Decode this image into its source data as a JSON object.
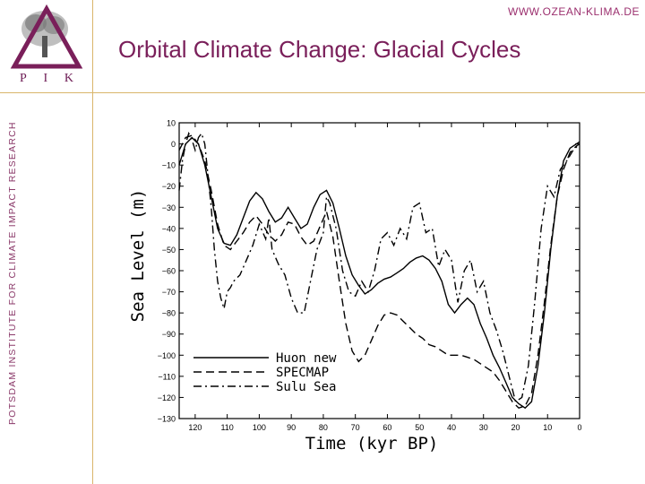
{
  "header": {
    "url": "WWW.OZEAN-KLIMA.DE",
    "title": "Orbital Climate Change: Glacial Cycles"
  },
  "logo": {
    "letters": [
      "P",
      "I",
      "K"
    ]
  },
  "sidebar": {
    "institute": "POTSDAM INSTITUTE FOR CLIMATE IMPACT RESEARCH"
  },
  "colors": {
    "brand": "#7a1f5a",
    "rule": "#d9b56b"
  },
  "chart_data": {
    "type": "line",
    "xlabel": "Time (kyr BP)",
    "ylabel": "Sea Level (m)",
    "xlim": [
      125,
      0
    ],
    "ylim": [
      -130,
      10
    ],
    "x_ticks": [
      120,
      110,
      100,
      90,
      80,
      70,
      60,
      50,
      40,
      30,
      20,
      10,
      0
    ],
    "y_ticks": [
      10,
      0,
      -10,
      -20,
      -30,
      -40,
      -50,
      -60,
      -70,
      -80,
      -90,
      -100,
      -110,
      -120,
      -130
    ],
    "legend_position": "bottom-left",
    "grid": false,
    "series": [
      {
        "name": "Huon new",
        "style": "solid",
        "x": [
          125,
          123,
          121,
          119,
          117,
          115,
          113,
          111,
          109,
          107,
          105,
          103,
          101,
          99,
          97,
          95,
          93,
          91,
          89,
          87,
          85,
          83,
          81,
          79,
          77,
          75,
          73,
          71,
          69,
          67,
          65,
          63,
          61,
          59,
          57,
          55,
          53,
          51,
          49,
          47,
          45,
          43,
          41,
          39,
          37,
          35,
          33,
          31,
          29,
          27,
          25,
          23,
          21,
          19,
          17,
          15,
          13,
          11,
          9,
          7,
          5,
          3,
          1,
          0
        ],
        "y": [
          -10,
          0,
          3,
          0,
          -10,
          -25,
          -40,
          -47,
          -48,
          -43,
          -35,
          -27,
          -23,
          -26,
          -32,
          -37,
          -35,
          -30,
          -35,
          -40,
          -38,
          -30,
          -24,
          -22,
          -28,
          -40,
          -53,
          -62,
          -67,
          -71,
          -69,
          -66,
          -64,
          -63,
          -61,
          -59,
          -56,
          -54,
          -53,
          -55,
          -59,
          -65,
          -76,
          -80,
          -76,
          -73,
          -76,
          -85,
          -92,
          -100,
          -106,
          -113,
          -120,
          -123,
          -125,
          -122,
          -105,
          -80,
          -50,
          -25,
          -8,
          -2,
          0,
          1
        ]
      },
      {
        "name": "SPECMAP",
        "style": "dashed",
        "x": [
          125,
          123,
          121,
          119,
          117,
          115,
          113,
          111,
          109,
          107,
          105,
          103,
          101,
          99,
          97,
          95,
          93,
          91,
          89,
          87,
          85,
          83,
          81,
          79,
          77,
          75,
          73,
          71,
          69,
          67,
          65,
          63,
          61,
          59,
          57,
          55,
          53,
          51,
          49,
          47,
          45,
          43,
          41,
          39,
          37,
          35,
          33,
          31,
          29,
          27,
          25,
          23,
          21,
          19,
          17,
          15,
          13,
          11,
          9,
          7,
          5,
          3,
          1,
          0
        ],
        "y": [
          -3,
          3,
          4,
          0,
          -8,
          -22,
          -38,
          -48,
          -50,
          -46,
          -42,
          -37,
          -34,
          -38,
          -43,
          -46,
          -43,
          -37,
          -38,
          -44,
          -48,
          -46,
          -39,
          -32,
          -44,
          -65,
          -85,
          -98,
          -103,
          -100,
          -93,
          -86,
          -81,
          -80,
          -81,
          -84,
          -87,
          -90,
          -92,
          -95,
          -96,
          -98,
          -100,
          -100,
          -100,
          -101,
          -102,
          -104,
          -106,
          -108,
          -112,
          -117,
          -122,
          -125,
          -124,
          -118,
          -100,
          -75,
          -48,
          -25,
          -12,
          -4,
          -1,
          0
        ]
      },
      {
        "name": "Sulu Sea",
        "style": "dashdot",
        "x": [
          125,
          124,
          123,
          122,
          121,
          120,
          119,
          118,
          117,
          116,
          115,
          114,
          113,
          112,
          111,
          110,
          109,
          108,
          106,
          104,
          102,
          100,
          98,
          97,
          96,
          94,
          92,
          90,
          88,
          86,
          84,
          82,
          80,
          79,
          78,
          76,
          74,
          72,
          70,
          68,
          66,
          64,
          62,
          60,
          58,
          56,
          54,
          52,
          50,
          48,
          46,
          44,
          42,
          40,
          38,
          36,
          34,
          32,
          30,
          28,
          26,
          24,
          22,
          20,
          18,
          16,
          14,
          12,
          10,
          8,
          6,
          4,
          2,
          0
        ],
        "y": [
          -22,
          -8,
          0,
          5,
          2,
          -3,
          3,
          5,
          0,
          -15,
          -30,
          -50,
          -65,
          -73,
          -78,
          -70,
          -68,
          -65,
          -62,
          -55,
          -48,
          -38,
          -45,
          -35,
          -50,
          -57,
          -62,
          -73,
          -80,
          -80,
          -65,
          -50,
          -42,
          -25,
          -28,
          -40,
          -60,
          -70,
          -72,
          -65,
          -70,
          -60,
          -45,
          -42,
          -48,
          -40,
          -45,
          -30,
          -28,
          -42,
          -40,
          -58,
          -50,
          -55,
          -75,
          -60,
          -55,
          -70,
          -65,
          -80,
          -88,
          -98,
          -110,
          -122,
          -120,
          -105,
          -75,
          -40,
          -20,
          -25,
          -12,
          -8,
          -3,
          0
        ]
      }
    ]
  }
}
